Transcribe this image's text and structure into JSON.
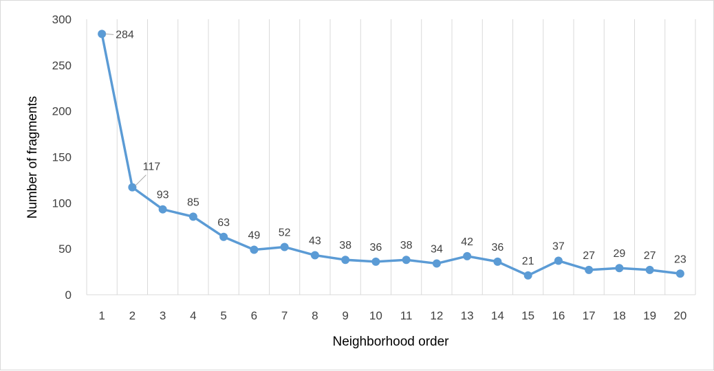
{
  "chart_data": {
    "type": "line",
    "title": "",
    "xlabel": "Neighborhood order",
    "ylabel": "Number of fragments",
    "ylim": [
      0,
      300
    ],
    "yticks": [
      0,
      50,
      100,
      150,
      200,
      250,
      300
    ],
    "categories": [
      "1",
      "2",
      "3",
      "4",
      "5",
      "6",
      "7",
      "8",
      "9",
      "10",
      "11",
      "12",
      "13",
      "14",
      "15",
      "16",
      "17",
      "18",
      "19",
      "20"
    ],
    "series": [
      {
        "values": [
          284,
          117,
          93,
          85,
          63,
          49,
          52,
          43,
          38,
          36,
          38,
          34,
          42,
          36,
          21,
          37,
          27,
          29,
          27,
          23
        ],
        "color": "#5b9bd5",
        "markers": true,
        "data_labels": true
      }
    ],
    "grid": {
      "vertical": true,
      "horizontal": false,
      "color": "#d9d9d9"
    },
    "legend": "none"
  }
}
